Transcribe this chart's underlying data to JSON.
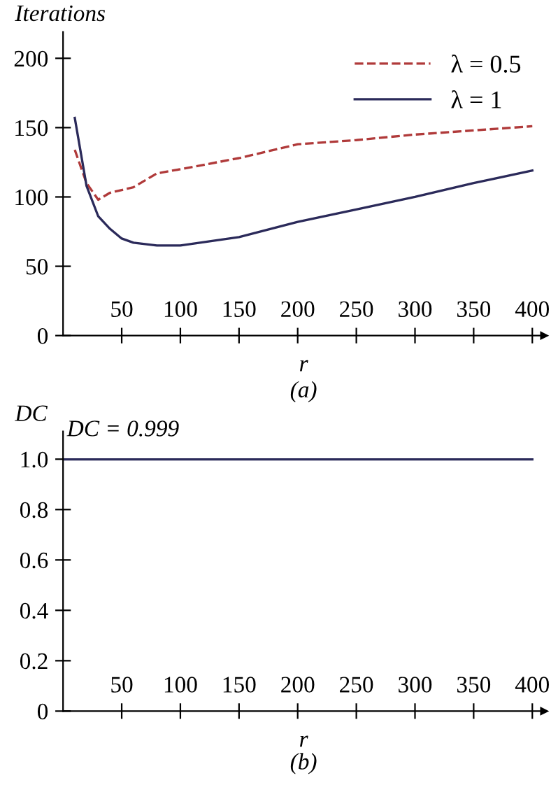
{
  "chart_data": [
    {
      "type": "line",
      "ylabel": "Iterations",
      "xlabel": "r",
      "annotations": [
        "(a)"
      ],
      "xlim": [
        0,
        410
      ],
      "xticks": [
        50,
        100,
        150,
        200,
        250,
        300,
        350,
        400
      ],
      "ylim": [
        0,
        219
      ],
      "yticks": [
        0,
        50,
        100,
        150,
        200
      ],
      "grid": false,
      "legend": "top right",
      "tick_labels": "xy",
      "series": [
        {
          "name": "λ = 0.5",
          "color": "#b03a3a",
          "line_style": "dashed",
          "x": [
            10,
            20,
            30,
            40,
            50,
            60,
            80,
            100,
            150,
            200,
            250,
            300,
            350,
            400
          ],
          "values": [
            134,
            110,
            98,
            103,
            105,
            107,
            117,
            120,
            128,
            138,
            141,
            145,
            148,
            151
          ]
        },
        {
          "name": "λ = 1",
          "color": "#2b2a5a",
          "line_style": "solid",
          "x": [
            10,
            20,
            30,
            40,
            50,
            60,
            80,
            100,
            150,
            200,
            250,
            300,
            350,
            400
          ],
          "values": [
            157,
            108,
            86,
            77,
            70,
            67,
            65,
            65,
            71,
            82,
            91,
            100,
            110,
            119
          ]
        }
      ]
    },
    {
      "type": "line",
      "ylabel": "DC",
      "xlabel": "r",
      "annotations": [
        {
          "text": "DC = 0.999",
          "x": 0,
          "y": 0.999
        },
        "(b)"
      ],
      "xlim": [
        0,
        410
      ],
      "xticks": [
        50,
        100,
        150,
        200,
        250,
        300,
        350,
        400
      ],
      "ylim": [
        0,
        1.11
      ],
      "yticks": [
        0,
        0.2,
        0.4,
        0.6,
        0.8,
        {
          "value": 1,
          "label": "1.0"
        }
      ],
      "grid": false,
      "legend": false,
      "series": [
        {
          "color": "#2b2a5a",
          "line_style": "solid",
          "x": [
            0,
            400
          ],
          "values": [
            0.999,
            0.999
          ]
        }
      ]
    }
  ]
}
